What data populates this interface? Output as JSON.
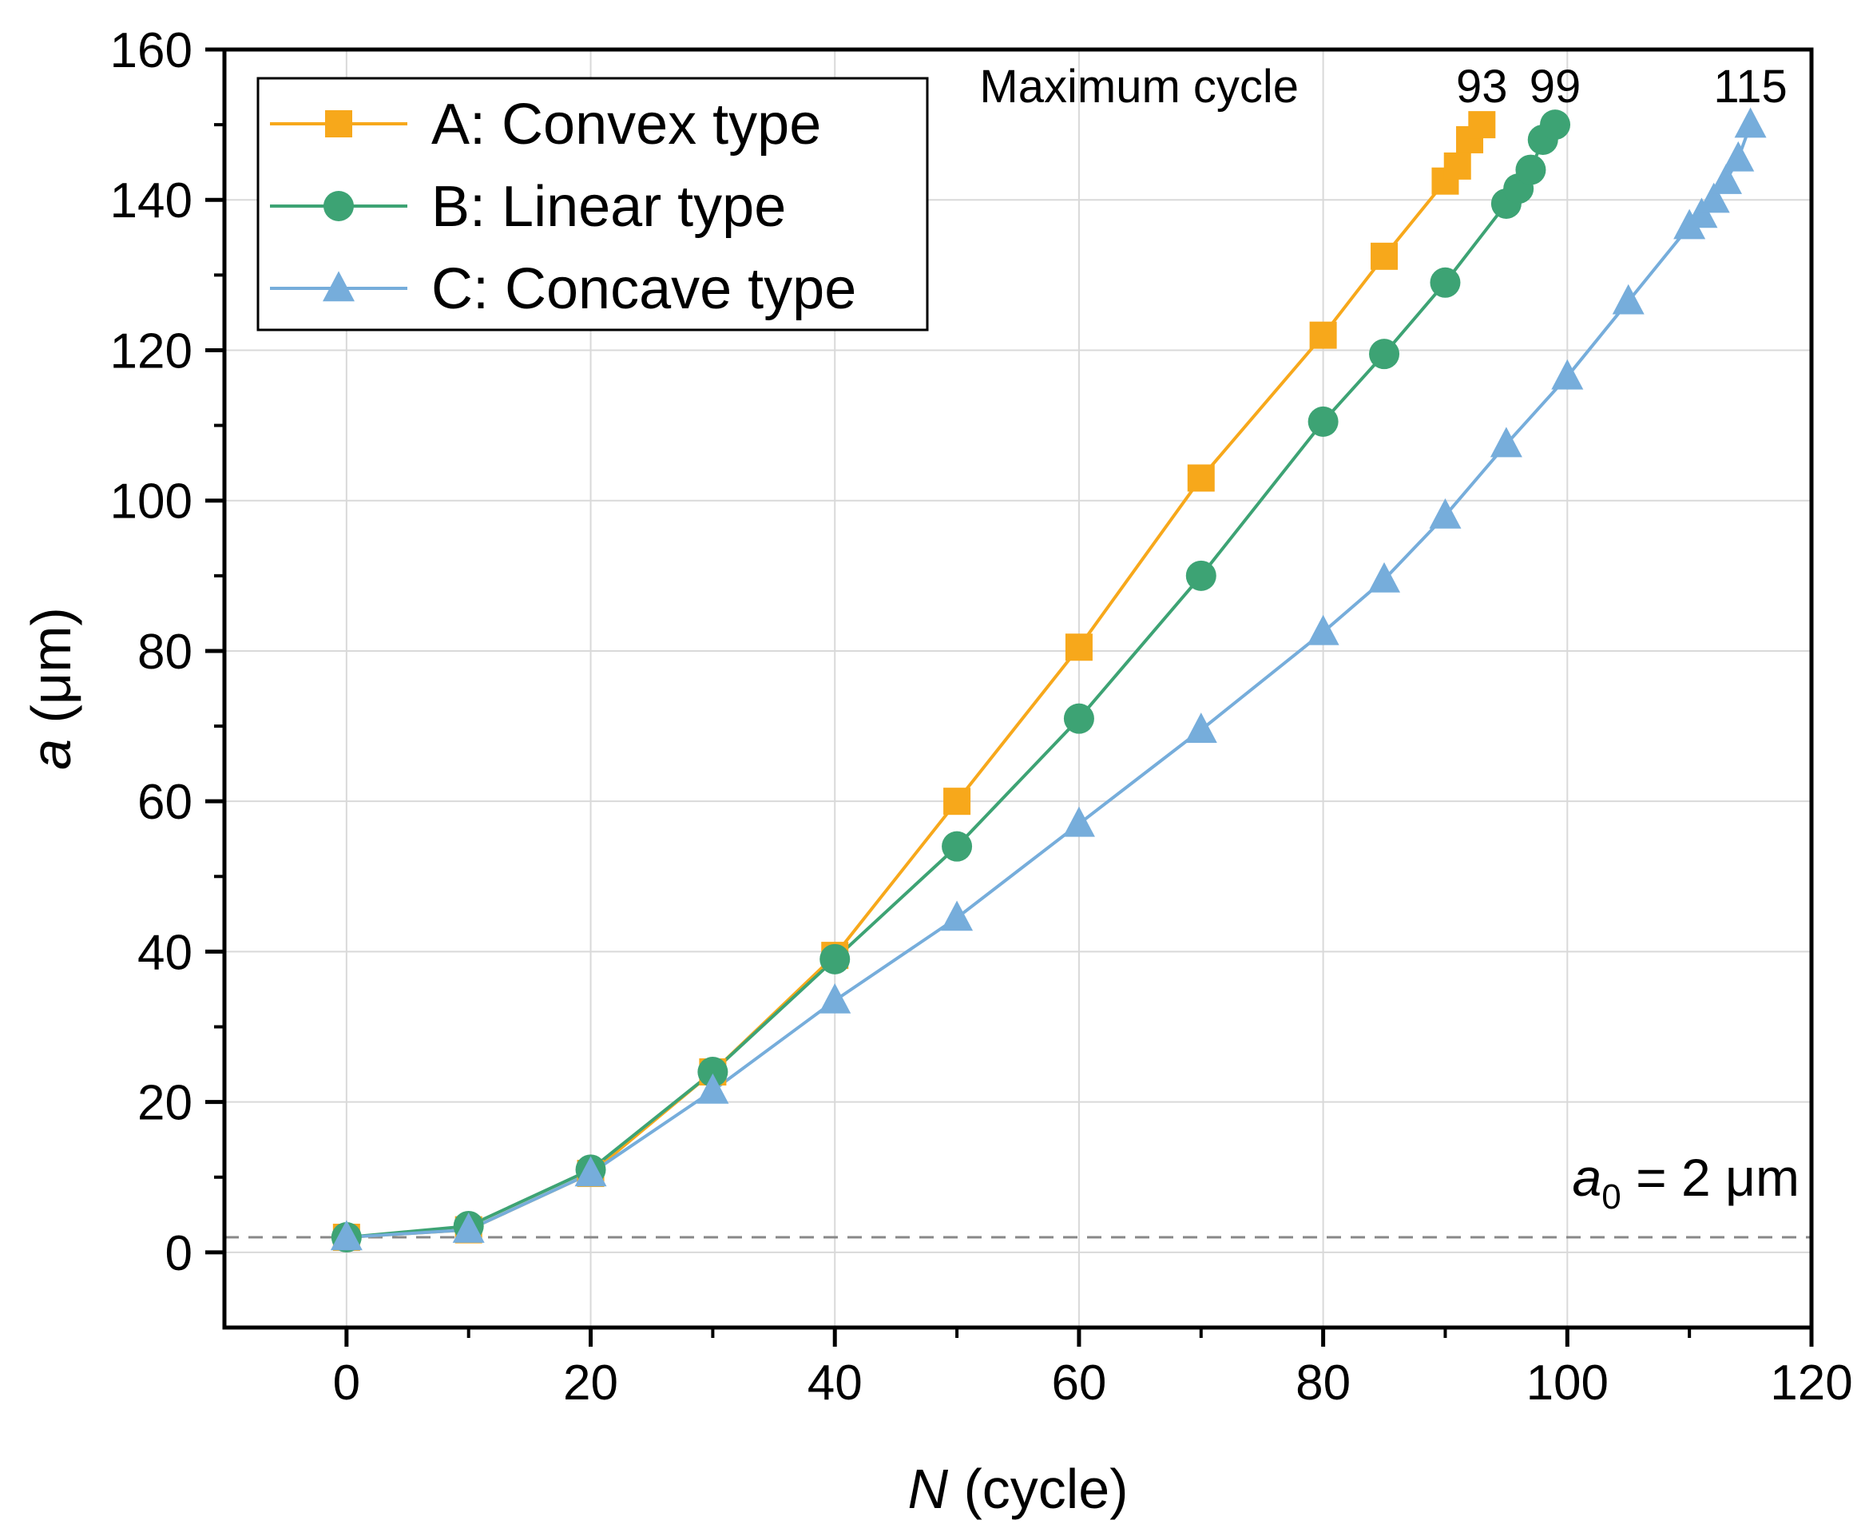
{
  "chart_data": {
    "type": "line",
    "title": "",
    "xlabel": {
      "var": "N",
      "unit": " (cycle)"
    },
    "ylabel": {
      "var": "a",
      "unit": " (μm)"
    },
    "xlim": [
      -10,
      120
    ],
    "ylim": [
      -10,
      160
    ],
    "xticks": [
      0,
      20,
      40,
      60,
      80,
      100,
      120
    ],
    "yticks": [
      0,
      20,
      40,
      60,
      80,
      100,
      120,
      140,
      160
    ],
    "grid": true,
    "legend_position": "top-left",
    "series": [
      {
        "name": "A: Convex type",
        "color": "#F7A81B",
        "marker": "square",
        "x": [
          0,
          10,
          20,
          30,
          40,
          50,
          60,
          70,
          80,
          85,
          90,
          91,
          92,
          93
        ],
        "y": [
          2,
          3,
          10.5,
          24,
          39.5,
          60,
          80.5,
          103,
          122,
          132.5,
          142.5,
          144.5,
          148,
          150
        ]
      },
      {
        "name": "B: Linear type",
        "color": "#3DA374",
        "marker": "circle",
        "x": [
          0,
          10,
          20,
          30,
          40,
          50,
          60,
          70,
          80,
          85,
          90,
          95,
          96,
          97,
          98,
          99
        ],
        "y": [
          2,
          3.5,
          11,
          24,
          39,
          54,
          71,
          90,
          110.5,
          119.5,
          129,
          139.5,
          141.5,
          144,
          148,
          150
        ]
      },
      {
        "name": "C: Concave type",
        "color": "#76ADDB",
        "marker": "triangle",
        "x": [
          0,
          10,
          20,
          30,
          40,
          50,
          60,
          70,
          80,
          85,
          90,
          95,
          100,
          105,
          110,
          111,
          112,
          113,
          114,
          115
        ],
        "y": [
          2,
          3,
          10.5,
          21.5,
          33.5,
          44.5,
          57,
          69.5,
          82.5,
          89.5,
          98,
          107.5,
          116.5,
          126.5,
          136.5,
          138,
          140,
          142.5,
          145.5,
          150
        ]
      }
    ],
    "reference_line": {
      "y": 2,
      "color": "#888888",
      "style": "dashed"
    },
    "annotations": {
      "max_cycle_label": "Maximum cycle",
      "max_cycles": [
        "93",
        "99",
        "115"
      ],
      "a0_label": {
        "var": "a",
        "sub": "0",
        "rest": " = 2 μm"
      }
    }
  }
}
